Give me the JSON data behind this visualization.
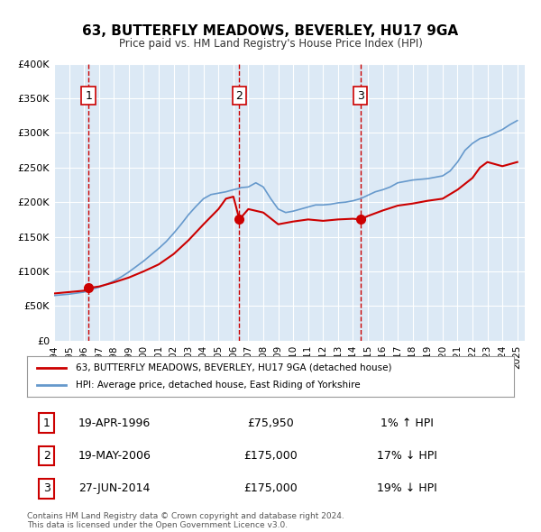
{
  "title": "63, BUTTERFLY MEADOWS, BEVERLEY, HU17 9GA",
  "subtitle": "Price paid vs. HM Land Registry's House Price Index (HPI)",
  "red_line_label": "63, BUTTERFLY MEADOWS, BEVERLEY, HU17 9GA (detached house)",
  "blue_line_label": "HPI: Average price, detached house, East Riding of Yorkshire",
  "footnote1": "Contains HM Land Registry data © Crown copyright and database right 2024.",
  "footnote2": "This data is licensed under the Open Government Licence v3.0.",
  "ylabel": "",
  "xlim_start": 1994.0,
  "xlim_end": 2025.5,
  "ylim_min": 0,
  "ylim_max": 400000,
  "background_color": "#dce9f5",
  "plot_bg_color": "#dce9f5",
  "grid_color": "#ffffff",
  "transactions": [
    {
      "num": 1,
      "date_label": "19-APR-1996",
      "price": 75950,
      "hpi_diff": "1% ↑ HPI",
      "year": 1996.3
    },
    {
      "num": 2,
      "date_label": "19-MAY-2006",
      "price": 175000,
      "hpi_diff": "17% ↓ HPI",
      "year": 2006.4
    },
    {
      "num": 3,
      "date_label": "27-JUN-2014",
      "price": 175000,
      "hpi_diff": "19% ↓ HPI",
      "year": 2014.5
    }
  ],
  "red_color": "#cc0000",
  "blue_color": "#6699cc",
  "dot_color": "#cc0000",
  "vline_color": "#cc0000",
  "hpi_x": [
    1994.0,
    1994.5,
    1995.0,
    1995.5,
    1996.0,
    1996.3,
    1996.5,
    1997.0,
    1997.5,
    1998.0,
    1998.5,
    1999.0,
    1999.5,
    2000.0,
    2000.5,
    2001.0,
    2001.5,
    2002.0,
    2002.5,
    2003.0,
    2003.5,
    2004.0,
    2004.5,
    2005.0,
    2005.5,
    2006.0,
    2006.4,
    2006.5,
    2007.0,
    2007.5,
    2008.0,
    2008.5,
    2009.0,
    2009.5,
    2010.0,
    2010.5,
    2011.0,
    2011.5,
    2012.0,
    2012.5,
    2013.0,
    2013.5,
    2014.0,
    2014.5,
    2015.0,
    2015.5,
    2016.0,
    2016.5,
    2017.0,
    2017.5,
    2018.0,
    2018.5,
    2019.0,
    2019.5,
    2020.0,
    2020.5,
    2021.0,
    2021.5,
    2022.0,
    2022.5,
    2023.0,
    2023.5,
    2024.0,
    2024.5,
    2025.0
  ],
  "hpi_y": [
    65000,
    66000,
    67000,
    68500,
    70000,
    72000,
    74000,
    77000,
    81000,
    86000,
    92000,
    99000,
    107000,
    115000,
    124000,
    133000,
    143000,
    155000,
    168000,
    182000,
    194000,
    205000,
    211000,
    213000,
    215000,
    218000,
    220000,
    221000,
    222000,
    228000,
    222000,
    205000,
    190000,
    185000,
    187000,
    190000,
    193000,
    196000,
    196000,
    197000,
    199000,
    200000,
    202000,
    205000,
    210000,
    215000,
    218000,
    222000,
    228000,
    230000,
    232000,
    233000,
    234000,
    236000,
    238000,
    245000,
    258000,
    275000,
    285000,
    292000,
    295000,
    300000,
    305000,
    312000,
    318000
  ],
  "red_x": [
    1994.0,
    1995.0,
    1996.0,
    1996.3,
    1997.0,
    1998.0,
    1999.0,
    2000.0,
    2001.0,
    2002.0,
    2003.0,
    2004.0,
    2005.0,
    2005.5,
    2006.0,
    2006.4,
    2007.0,
    2008.0,
    2009.0,
    2010.0,
    2011.0,
    2012.0,
    2013.0,
    2014.0,
    2014.5,
    2015.0,
    2016.0,
    2017.0,
    2018.0,
    2019.0,
    2020.0,
    2021.0,
    2022.0,
    2022.5,
    2023.0,
    2023.5,
    2024.0,
    2024.5,
    2025.0
  ],
  "red_y": [
    68000,
    70000,
    72000,
    75950,
    78000,
    84000,
    91000,
    100000,
    110000,
    125000,
    145000,
    168000,
    190000,
    205000,
    208000,
    175000,
    190000,
    185000,
    168000,
    172000,
    175000,
    173000,
    175000,
    176000,
    175000,
    180000,
    188000,
    195000,
    198000,
    202000,
    205000,
    218000,
    235000,
    250000,
    258000,
    255000,
    252000,
    255000,
    258000
  ]
}
